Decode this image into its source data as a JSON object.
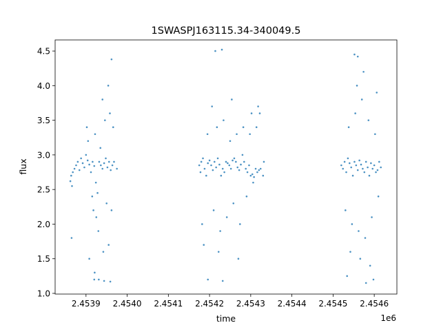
{
  "chart_data": {
    "type": "scatter",
    "title": "1SWASPJ163115.34-340049.5",
    "xlabel": "time",
    "ylabel": "flux",
    "x_offset_label": "1e6",
    "xlim": [
      2453825,
      2454655
    ],
    "ylim": [
      0.99,
      4.66
    ],
    "grid": false,
    "legend": "none",
    "point_color": "#1f77b4",
    "x_ticks": [
      {
        "value": 2453900,
        "label": "2.4539"
      },
      {
        "value": 2454000,
        "label": "2.4540"
      },
      {
        "value": 2454100,
        "label": "2.4541"
      },
      {
        "value": 2454200,
        "label": "2.4542"
      },
      {
        "value": 2454300,
        "label": "2.4543"
      },
      {
        "value": 2454400,
        "label": "2.4544"
      },
      {
        "value": 2454500,
        "label": "2.4545"
      },
      {
        "value": 2454600,
        "label": "2.4546"
      }
    ],
    "y_ticks": [
      {
        "value": 1.0,
        "label": "1.0"
      },
      {
        "value": 1.5,
        "label": "1.5"
      },
      {
        "value": 2.0,
        "label": "2.0"
      },
      {
        "value": 2.5,
        "label": "2.5"
      },
      {
        "value": 3.0,
        "label": "3.0"
      },
      {
        "value": 3.5,
        "label": "3.5"
      },
      {
        "value": 4.0,
        "label": "4.0"
      },
      {
        "value": 4.5,
        "label": "4.5"
      }
    ],
    "series": [
      {
        "x": [
          2453862,
          2453864,
          2453866,
          2453868,
          2453872,
          2453876,
          2453880,
          2453884,
          2453888,
          2453892,
          2453896,
          2453900,
          2453904,
          2453908,
          2453912,
          2453916,
          2453920,
          2453924,
          2453928,
          2453932,
          2453936,
          2453940,
          2453944,
          2453948,
          2453952,
          2453956,
          2453960,
          2453964,
          2453968,
          2453975,
          2453865,
          2453902,
          2453905,
          2453915,
          2453918,
          2453922,
          2453925,
          2453930,
          2453935,
          2453942,
          2453946,
          2453950,
          2453955,
          2453958,
          2453962,
          2453966,
          2453908,
          2453921,
          2453931,
          2453940,
          2453954,
          2453962,
          2453920,
          2453944,
          2453959
        ],
        "y": [
          2.62,
          2.7,
          2.55,
          2.75,
          2.8,
          2.85,
          2.9,
          2.78,
          2.95,
          2.88,
          2.82,
          3.0,
          2.92,
          2.86,
          2.75,
          2.9,
          2.84,
          2.6,
          2.45,
          2.9,
          2.85,
          2.8,
          2.88,
          2.95,
          2.82,
          2.9,
          2.78,
          2.85,
          2.9,
          2.8,
          1.8,
          3.4,
          3.2,
          2.4,
          2.2,
          3.3,
          2.1,
          1.9,
          3.1,
          1.6,
          3.5,
          2.3,
          1.7,
          3.6,
          2.2,
          3.4,
          1.5,
          1.3,
          1.2,
          3.8,
          4.0,
          4.38,
          1.2,
          1.18,
          1.17
        ]
      },
      {
        "x": [
          2454175,
          2454178,
          2454180,
          2454184,
          2454188,
          2454192,
          2454196,
          2454200,
          2454204,
          2454208,
          2454212,
          2454216,
          2454220,
          2454224,
          2454228,
          2454232,
          2454236,
          2454240,
          2454244,
          2454248,
          2454252,
          2454256,
          2454260,
          2454264,
          2454268,
          2454272,
          2454276,
          2454280,
          2454284,
          2454288,
          2454292,
          2454296,
          2454300,
          2454304,
          2454308,
          2454312,
          2454316,
          2454320,
          2454324,
          2454330,
          2454332,
          2454182,
          2454195,
          2454210,
          2454218,
          2454226,
          2454234,
          2454242,
          2454250,
          2454258,
          2454266,
          2454274,
          2454282,
          2454290,
          2454298,
          2454306,
          2454314,
          2454322,
          2454186,
          2454206,
          2454222,
          2454254,
          2454270,
          2454302,
          2454318,
          2454214,
          2454230,
          2454196,
          2454232
        ],
        "y": [
          2.85,
          2.75,
          2.9,
          2.95,
          2.8,
          2.7,
          2.88,
          2.92,
          2.85,
          2.78,
          2.9,
          2.82,
          2.95,
          2.86,
          2.7,
          2.8,
          2.75,
          2.9,
          2.88,
          2.85,
          2.8,
          2.92,
          2.95,
          2.9,
          2.82,
          2.78,
          2.86,
          3.0,
          2.9,
          2.8,
          2.75,
          2.85,
          2.7,
          2.72,
          2.68,
          2.8,
          2.75,
          2.78,
          2.8,
          2.7,
          2.9,
          2.0,
          3.3,
          2.2,
          3.4,
          1.9,
          3.5,
          2.1,
          3.2,
          2.3,
          3.3,
          2.0,
          3.4,
          2.4,
          3.3,
          2.6,
          3.4,
          3.6,
          1.7,
          3.7,
          1.6,
          3.8,
          1.5,
          3.6,
          3.7,
          4.5,
          4.52,
          1.2,
          1.18
        ]
      },
      {
        "x": [
          2454520,
          2454524,
          2454528,
          2454532,
          2454536,
          2454540,
          2454544,
          2454548,
          2454552,
          2454556,
          2454560,
          2454564,
          2454568,
          2454572,
          2454576,
          2454580,
          2454584,
          2454588,
          2454592,
          2454596,
          2454600,
          2454604,
          2454608,
          2454612,
          2454616,
          2454530,
          2454538,
          2454546,
          2454554,
          2454562,
          2454570,
          2454578,
          2454586,
          2454594,
          2454602,
          2454610,
          2454542,
          2454558,
          2454566,
          2454574,
          2454590,
          2454606,
          2454552,
          2454560,
          2454598,
          2454534,
          2454580
        ],
        "y": [
          2.85,
          2.8,
          2.9,
          2.75,
          2.95,
          2.88,
          2.82,
          2.7,
          2.9,
          2.85,
          2.78,
          2.92,
          2.86,
          2.8,
          2.75,
          2.9,
          2.82,
          2.7,
          2.88,
          2.8,
          2.85,
          2.75,
          2.78,
          2.9,
          2.82,
          2.2,
          3.4,
          2.0,
          3.6,
          1.9,
          3.8,
          1.8,
          3.5,
          2.1,
          3.3,
          2.4,
          1.6,
          4.0,
          1.5,
          4.2,
          1.4,
          3.9,
          4.45,
          4.42,
          1.2,
          1.25,
          1.15
        ]
      }
    ]
  }
}
